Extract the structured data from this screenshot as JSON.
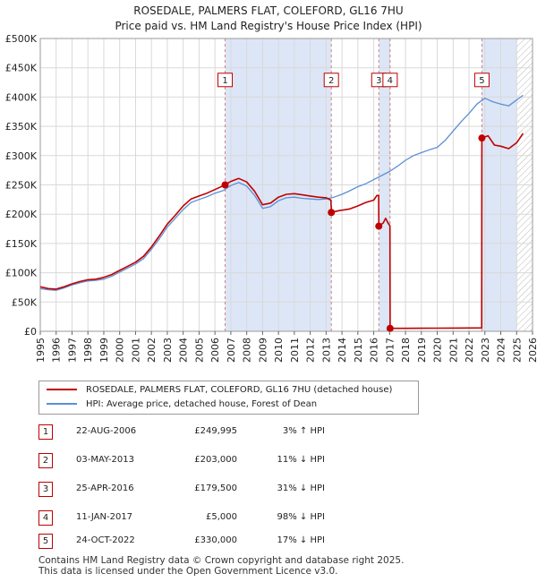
{
  "title": {
    "line1": "ROSEDALE, PALMERS FLAT, COLEFORD, GL16 7HU",
    "line2": "Price paid vs. HM Land Registry's House Price Index (HPI)"
  },
  "colors": {
    "property": "#c00000",
    "hpi": "#5b8fd6",
    "shade": "#dde6f6",
    "marker": "#c00000"
  },
  "chart_data": {
    "type": "line",
    "title": "ROSEDALE, PALMERS FLAT, COLEFORD, GL16 7HU — Price paid vs. HM Land Registry's House Price Index (HPI)",
    "xlim": [
      1995,
      2026
    ],
    "ylim": [
      0,
      500000
    ],
    "x_ticks": [
      "1995",
      "1996",
      "1997",
      "1998",
      "1999",
      "2000",
      "2001",
      "2002",
      "2003",
      "2004",
      "2005",
      "2006",
      "2007",
      "2008",
      "2009",
      "2010",
      "2011",
      "2012",
      "2013",
      "2014",
      "2015",
      "2016",
      "2017",
      "2018",
      "2019",
      "2020",
      "2021",
      "2022",
      "2023",
      "2024",
      "2025",
      "2026"
    ],
    "y_ticks": [
      {
        "value": 0,
        "label": "£0"
      },
      {
        "value": 50000,
        "label": "£50K"
      },
      {
        "value": 100000,
        "label": "£100K"
      },
      {
        "value": 150000,
        "label": "£150K"
      },
      {
        "value": 200000,
        "label": "£200K"
      },
      {
        "value": 250000,
        "label": "£250K"
      },
      {
        "value": 300000,
        "label": "£300K"
      },
      {
        "value": 350000,
        "label": "£350K"
      },
      {
        "value": 400000,
        "label": "£400K"
      },
      {
        "value": 450000,
        "label": "£450K"
      },
      {
        "value": 500000,
        "label": "£500K"
      }
    ],
    "shaded_periods": [
      [
        2006.64,
        2013.33
      ],
      [
        2016.32,
        2017.03
      ],
      [
        2022.81,
        2025.0
      ]
    ],
    "hatched_from": 2025.0,
    "series": [
      {
        "name": "HPI: Average price, detached house, Forest of Dean",
        "points": [
          [
            1995.0,
            73000
          ],
          [
            1995.5,
            71000
          ],
          [
            1996.0,
            70000
          ],
          [
            1996.5,
            74000
          ],
          [
            1997.0,
            79000
          ],
          [
            1997.5,
            83000
          ],
          [
            1998.0,
            86000
          ],
          [
            1998.5,
            87000
          ],
          [
            1999.0,
            89000
          ],
          [
            1999.5,
            94000
          ],
          [
            2000.0,
            101000
          ],
          [
            2000.5,
            108000
          ],
          [
            2001.0,
            115000
          ],
          [
            2001.5,
            124000
          ],
          [
            2002.0,
            140000
          ],
          [
            2002.5,
            158000
          ],
          [
            2003.0,
            178000
          ],
          [
            2003.5,
            193000
          ],
          [
            2004.0,
            208000
          ],
          [
            2004.5,
            220000
          ],
          [
            2005.0,
            225000
          ],
          [
            2005.5,
            230000
          ],
          [
            2006.0,
            236000
          ],
          [
            2006.5,
            240000
          ],
          [
            2007.0,
            249000
          ],
          [
            2007.5,
            254000
          ],
          [
            2008.0,
            248000
          ],
          [
            2008.5,
            232000
          ],
          [
            2009.0,
            210000
          ],
          [
            2009.5,
            213000
          ],
          [
            2010.0,
            223000
          ],
          [
            2010.5,
            228000
          ],
          [
            2011.0,
            229000
          ],
          [
            2011.5,
            227000
          ],
          [
            2012.0,
            226000
          ],
          [
            2012.5,
            225000
          ],
          [
            2013.0,
            226000
          ],
          [
            2013.5,
            229000
          ],
          [
            2014.0,
            234000
          ],
          [
            2014.5,
            240000
          ],
          [
            2015.0,
            247000
          ],
          [
            2015.5,
            252000
          ],
          [
            2016.0,
            259000
          ],
          [
            2016.5,
            266000
          ],
          [
            2017.0,
            273000
          ],
          [
            2017.5,
            282000
          ],
          [
            2018.0,
            292000
          ],
          [
            2018.5,
            300000
          ],
          [
            2019.0,
            305000
          ],
          [
            2019.5,
            310000
          ],
          [
            2020.0,
            314000
          ],
          [
            2020.5,
            326000
          ],
          [
            2021.0,
            342000
          ],
          [
            2021.5,
            358000
          ],
          [
            2022.0,
            372000
          ],
          [
            2022.5,
            388000
          ],
          [
            2023.0,
            398000
          ],
          [
            2023.5,
            392000
          ],
          [
            2024.0,
            388000
          ],
          [
            2024.5,
            385000
          ],
          [
            2025.0,
            395000
          ],
          [
            2025.4,
            403000
          ]
        ]
      },
      {
        "name": "ROSEDALE, PALMERS FLAT, COLEFORD, GL16 7HU (detached house)",
        "points": [
          [
            1995.0,
            76000
          ],
          [
            1995.5,
            73000
          ],
          [
            1996.0,
            72000
          ],
          [
            1996.5,
            76000
          ],
          [
            1997.0,
            81000
          ],
          [
            1997.5,
            85000
          ],
          [
            1998.0,
            88000
          ],
          [
            1998.5,
            89000
          ],
          [
            1999.0,
            92000
          ],
          [
            1999.5,
            97000
          ],
          [
            2000.0,
            104000
          ],
          [
            2000.5,
            111000
          ],
          [
            2001.0,
            118000
          ],
          [
            2001.5,
            128000
          ],
          [
            2002.0,
            144000
          ],
          [
            2002.5,
            163000
          ],
          [
            2003.0,
            183000
          ],
          [
            2003.5,
            198000
          ],
          [
            2004.0,
            214000
          ],
          [
            2004.5,
            226000
          ],
          [
            2005.0,
            231000
          ],
          [
            2005.5,
            236000
          ],
          [
            2006.0,
            242000
          ],
          [
            2006.64,
            249995
          ],
          [
            2007.0,
            256000
          ],
          [
            2007.5,
            261000
          ],
          [
            2008.0,
            255000
          ],
          [
            2008.5,
            239000
          ],
          [
            2009.0,
            216000
          ],
          [
            2009.5,
            219000
          ],
          [
            2010.0,
            229000
          ],
          [
            2010.5,
            234000
          ],
          [
            2011.0,
            235000
          ],
          [
            2011.5,
            233000
          ],
          [
            2012.0,
            231000
          ],
          [
            2012.5,
            229000
          ],
          [
            2013.0,
            228000
          ],
          [
            2013.3,
            224000
          ],
          [
            2013.34,
            203000
          ],
          [
            2013.8,
            206000
          ],
          [
            2014.5,
            209000
          ],
          [
            2015.0,
            214000
          ],
          [
            2015.5,
            220000
          ],
          [
            2016.0,
            224000
          ],
          [
            2016.2,
            232000
          ],
          [
            2016.31,
            232000
          ],
          [
            2016.32,
            179500
          ],
          [
            2016.6,
            185000
          ],
          [
            2016.75,
            193000
          ],
          [
            2016.9,
            185000
          ],
          [
            2017.02,
            180000
          ],
          [
            2017.03,
            5000
          ],
          [
            2018.0,
            5100
          ],
          [
            2019.0,
            5200
          ],
          [
            2020.0,
            5300
          ],
          [
            2021.0,
            5500
          ],
          [
            2022.0,
            5700
          ],
          [
            2022.8,
            5800
          ],
          [
            2022.81,
            330000
          ],
          [
            2023.2,
            334000
          ],
          [
            2023.6,
            318000
          ],
          [
            2024.0,
            316000
          ],
          [
            2024.5,
            312000
          ],
          [
            2025.0,
            322000
          ],
          [
            2025.4,
            338000
          ]
        ]
      }
    ],
    "transactions": [
      {
        "id": "1",
        "x": 2006.64,
        "y": 249995,
        "label_y": 430000
      },
      {
        "id": "2",
        "x": 2013.33,
        "y": 203000,
        "label_y": 430000
      },
      {
        "id": "3",
        "x": 2016.32,
        "y": 179500,
        "label_y": 430000
      },
      {
        "id": "4",
        "x": 2017.03,
        "y": 5000,
        "label_y": 430000
      },
      {
        "id": "5",
        "x": 2022.81,
        "y": 330000,
        "label_y": 430000
      }
    ]
  },
  "legend": {
    "property_label": "ROSEDALE, PALMERS FLAT, COLEFORD, GL16 7HU (detached house)",
    "hpi_label": "HPI: Average price, detached house, Forest of Dean"
  },
  "table": {
    "rows": [
      {
        "num": "1",
        "date": "22-AUG-2006",
        "price": "£249,995",
        "hpi": "3% ↑ HPI"
      },
      {
        "num": "2",
        "date": "03-MAY-2013",
        "price": "£203,000",
        "hpi": "11% ↓ HPI"
      },
      {
        "num": "3",
        "date": "25-APR-2016",
        "price": "£179,500",
        "hpi": "31% ↓ HPI"
      },
      {
        "num": "4",
        "date": "11-JAN-2017",
        "price": "£5,000",
        "hpi": "98% ↓ HPI"
      },
      {
        "num": "5",
        "date": "24-OCT-2022",
        "price": "£330,000",
        "hpi": "17% ↓ HPI"
      }
    ]
  },
  "footer": {
    "line1": "Contains HM Land Registry data © Crown copyright and database right 2025.",
    "line2": "This data is licensed under the Open Government Licence v3.0."
  }
}
